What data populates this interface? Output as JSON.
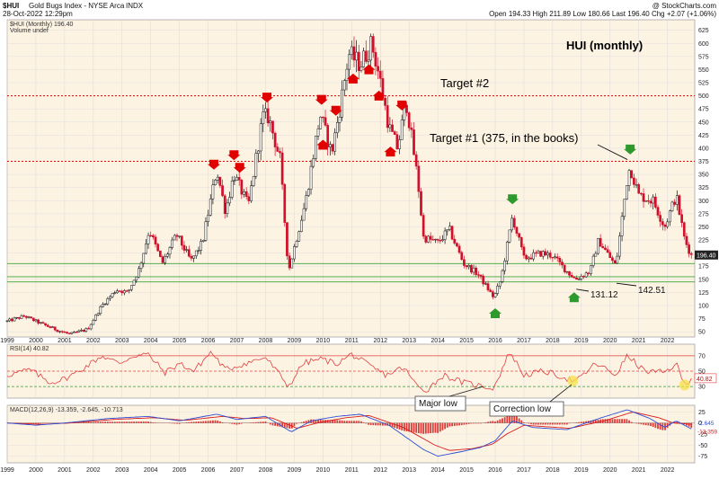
{
  "header": {
    "symbol": "$HUI",
    "name": "Gold Bugs Index - NYSE Arca",
    "exchange_tag": "INDX",
    "date": "28-Oct-2022 12:29pm",
    "ohlc": "Open 194.33   High 211.89   Low 180.66   Last 196.40   Chg +2.07 (+1.06%)",
    "watermark": "@ StockCharts.com",
    "legend_price": "$HUI (Monthly) 196.40",
    "legend_volume": "Volume undef",
    "legend_rsi": "RSI(14) 40.82",
    "legend_macd": "MACD(12,26,9) -13.359, -2.645, -10.713"
  },
  "annotations": {
    "title": "HUI (monthly)",
    "target2": "Target #2",
    "target1": "Target #1 (375, in the books)",
    "low1": "131.12",
    "low2": "142.51",
    "major_low": "Major low",
    "correction_low": "Correction low"
  },
  "colors": {
    "up": "#111111",
    "down": "#d0102a",
    "panel_bg": "#fdf3e3",
    "target_line": "#e00000",
    "support_line": "#3aa53a",
    "rsi_line": "#e04040",
    "macd_line": "#2b4fd6",
    "signal_line": "#d81b1b",
    "arrow_red": "#e00000",
    "arrow_green": "#2e9a2e",
    "highlight": "#f5e04a"
  },
  "chart_data": {
    "type": "candlestick",
    "x_labels": [
      "1999",
      "2000",
      "2001",
      "2002",
      "2003",
      "2004",
      "2005",
      "2006",
      "2007",
      "2008",
      "2009",
      "2010",
      "2011",
      "2012",
      "2013",
      "2014",
      "2015",
      "2016",
      "2017",
      "2018",
      "2019",
      "2020",
      "2021",
      "2022"
    ],
    "price": {
      "y_ticks": [
        50,
        75,
        100,
        125,
        150,
        175,
        200,
        225,
        250,
        275,
        300,
        325,
        350,
        375,
        400,
        425,
        450,
        475,
        500,
        525,
        550,
        575,
        600,
        625
      ],
      "ylim": [
        40,
        645
      ],
      "last_value_label": "196.40",
      "target_levels": [
        500,
        375
      ],
      "support_levels": [
        180,
        155,
        145
      ],
      "anchors": [
        [
          1999.0,
          70
        ],
        [
          1999.6,
          80
        ],
        [
          2000.2,
          65
        ],
        [
          2000.8,
          52
        ],
        [
          2001.2,
          45
        ],
        [
          2001.8,
          55
        ],
        [
          2002.3,
          100
        ],
        [
          2002.8,
          130
        ],
        [
          2003.2,
          125
        ],
        [
          2003.6,
          170
        ],
        [
          2003.95,
          245
        ],
        [
          2004.4,
          180
        ],
        [
          2004.9,
          235
        ],
        [
          2005.4,
          185
        ],
        [
          2005.8,
          220
        ],
        [
          2006.3,
          360
        ],
        [
          2006.6,
          280
        ],
        [
          2006.9,
          350
        ],
        [
          2007.4,
          290
        ],
        [
          2007.9,
          460
        ],
        [
          2008.1,
          460
        ],
        [
          2008.5,
          380
        ],
        [
          2008.8,
          165
        ],
        [
          2008.95,
          200
        ],
        [
          2009.4,
          300
        ],
        [
          2009.9,
          465
        ],
        [
          2010.3,
          390
        ],
        [
          2010.6,
          480
        ],
        [
          2010.9,
          580
        ],
        [
          2011.3,
          560
        ],
        [
          2011.7,
          600
        ],
        [
          2011.95,
          540
        ],
        [
          2012.3,
          440
        ],
        [
          2012.6,
          400
        ],
        [
          2012.9,
          490
        ],
        [
          2013.3,
          340
        ],
        [
          2013.5,
          230
        ],
        [
          2014.0,
          220
        ],
        [
          2014.4,
          245
        ],
        [
          2014.9,
          180
        ],
        [
          2015.4,
          160
        ],
        [
          2015.95,
          115
        ],
        [
          2016.2,
          150
        ],
        [
          2016.6,
          270
        ],
        [
          2017.0,
          190
        ],
        [
          2017.6,
          200
        ],
        [
          2018.0,
          195
        ],
        [
          2018.5,
          165
        ],
        [
          2018.8,
          150
        ],
        [
          2019.3,
          165
        ],
        [
          2019.6,
          225
        ],
        [
          2020.2,
          175
        ],
        [
          2020.6,
          345
        ],
        [
          2020.7,
          365
        ],
        [
          2021.0,
          310
        ],
        [
          2021.5,
          300
        ],
        [
          2021.9,
          250
        ],
        [
          2022.3,
          310
        ],
        [
          2022.6,
          225
        ],
        [
          2022.83,
          196
        ]
      ],
      "callout_points": [
        {
          "name": "low-131",
          "x": 2018.7,
          "y": 131.12
        },
        {
          "name": "low-142",
          "x": 2020.1,
          "y": 142.51
        },
        {
          "name": "target1-peak",
          "x": 2020.7,
          "y": 375
        }
      ],
      "red_arrows_above": [
        2006.2,
        2006.9,
        2007.1,
        2008.05,
        2009.95,
        2010.45,
        2012.75
      ],
      "red_arrows_below": [
        2010.0,
        2011.05,
        2011.6,
        2011.95,
        2012.35
      ],
      "green_arrows_above": [
        2016.6,
        2020.7
      ],
      "green_arrows_below": [
        2016.0,
        2018.75
      ]
    },
    "rsi": {
      "title": "RSI(14)",
      "value": 40.82,
      "levels": [
        70,
        50,
        30
      ],
      "ylim": [
        15,
        85
      ],
      "y_ticks": [
        30,
        50,
        70
      ],
      "last_value_label": "40.82",
      "anchors": [
        [
          1999.0,
          45
        ],
        [
          1999.8,
          52
        ],
        [
          2000.5,
          35
        ],
        [
          2001.0,
          40
        ],
        [
          2001.5,
          50
        ],
        [
          2002.3,
          70
        ],
        [
          2002.9,
          60
        ],
        [
          2003.4,
          70
        ],
        [
          2003.9,
          72
        ],
        [
          2004.5,
          48
        ],
        [
          2005.0,
          60
        ],
        [
          2005.5,
          50
        ],
        [
          2006.1,
          75
        ],
        [
          2006.6,
          52
        ],
        [
          2007.3,
          60
        ],
        [
          2008.0,
          68
        ],
        [
          2008.6,
          40
        ],
        [
          2008.8,
          30
        ],
        [
          2009.3,
          60
        ],
        [
          2009.9,
          66
        ],
        [
          2010.5,
          60
        ],
        [
          2011.0,
          72
        ],
        [
          2011.7,
          55
        ],
        [
          2012.2,
          45
        ],
        [
          2012.8,
          55
        ],
        [
          2013.3,
          30
        ],
        [
          2013.6,
          25
        ],
        [
          2014.2,
          45
        ],
        [
          2014.9,
          35
        ],
        [
          2015.6,
          30
        ],
        [
          2015.95,
          28
        ],
        [
          2016.5,
          75
        ],
        [
          2017.0,
          45
        ],
        [
          2017.7,
          50
        ],
        [
          2018.4,
          42
        ],
        [
          2018.8,
          36
        ],
        [
          2019.5,
          60
        ],
        [
          2020.2,
          45
        ],
        [
          2020.6,
          70
        ],
        [
          2021.2,
          50
        ],
        [
          2021.9,
          48
        ],
        [
          2022.3,
          60
        ],
        [
          2022.6,
          32
        ],
        [
          2022.83,
          40.82
        ]
      ],
      "highlight_points": [
        2018.7,
        2022.6
      ]
    },
    "macd": {
      "title": "MACD(12,26,9)",
      "values": [
        -13.359,
        -2.645,
        -10.713
      ],
      "ylim": [
        -90,
        40
      ],
      "y_ticks": [
        -75,
        -50,
        -25,
        0,
        25
      ],
      "last_value_labels": [
        "-2.645",
        "-13.359"
      ],
      "macd_anchors": [
        [
          1999.0,
          0
        ],
        [
          2000.0,
          -5
        ],
        [
          2001.0,
          0
        ],
        [
          2002.5,
          10
        ],
        [
          2003.9,
          15
        ],
        [
          2005.0,
          5
        ],
        [
          2006.3,
          20
        ],
        [
          2007.0,
          8
        ],
        [
          2008.0,
          15
        ],
        [
          2008.9,
          -20
        ],
        [
          2009.6,
          5
        ],
        [
          2010.5,
          15
        ],
        [
          2011.3,
          20
        ],
        [
          2012.3,
          -5
        ],
        [
          2013.5,
          -60
        ],
        [
          2014.0,
          -75
        ],
        [
          2014.8,
          -65
        ],
        [
          2015.5,
          -55
        ],
        [
          2016.0,
          -40
        ],
        [
          2016.6,
          5
        ],
        [
          2017.3,
          -10
        ],
        [
          2018.5,
          -15
        ],
        [
          2019.6,
          10
        ],
        [
          2020.6,
          30
        ],
        [
          2021.4,
          10
        ],
        [
          2021.9,
          -10
        ],
        [
          2022.3,
          5
        ],
        [
          2022.83,
          -13.359
        ]
      ],
      "signal_anchors": [
        [
          1999.0,
          0
        ],
        [
          2000.2,
          -3
        ],
        [
          2001.2,
          0
        ],
        [
          2002.7,
          8
        ],
        [
          2004.1,
          12
        ],
        [
          2005.2,
          6
        ],
        [
          2006.5,
          15
        ],
        [
          2007.3,
          10
        ],
        [
          2008.2,
          12
        ],
        [
          2009.1,
          -12
        ],
        [
          2009.8,
          0
        ],
        [
          2010.8,
          12
        ],
        [
          2011.6,
          17
        ],
        [
          2012.8,
          -10
        ],
        [
          2013.9,
          -50
        ],
        [
          2014.4,
          -62
        ],
        [
          2015.2,
          -58
        ],
        [
          2015.9,
          -48
        ],
        [
          2016.4,
          -25
        ],
        [
          2017.0,
          -5
        ],
        [
          2018.6,
          -12
        ],
        [
          2019.8,
          5
        ],
        [
          2020.8,
          25
        ],
        [
          2021.7,
          12
        ],
        [
          2022.2,
          0
        ],
        [
          2022.83,
          -2.645
        ]
      ]
    }
  }
}
